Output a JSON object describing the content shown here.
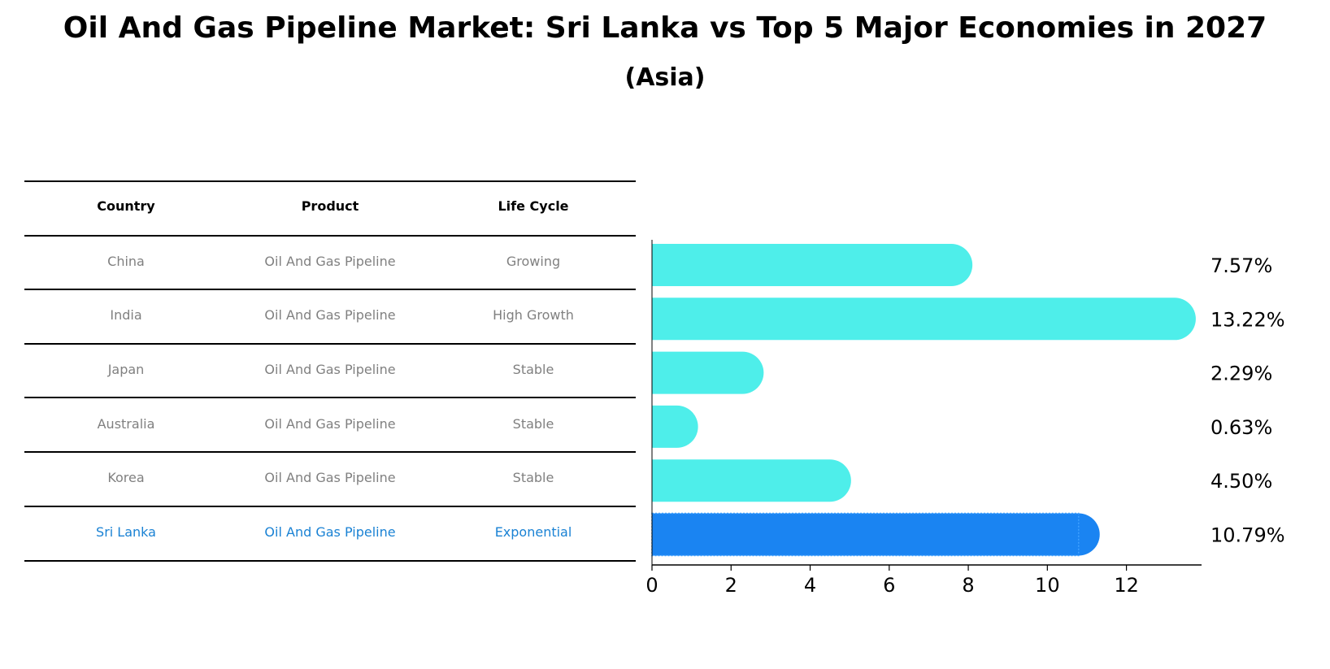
{
  "title": "Oil And Gas Pipeline Market: Sri Lanka vs Top 5 Major Economies in 2027",
  "subtitle": "(Asia)",
  "table": {
    "headers": [
      "Country",
      "Product",
      "Life Cycle"
    ],
    "rows": [
      {
        "country": "China",
        "product": "Oil And Gas Pipeline",
        "life_cycle": "Growing",
        "highlight": false
      },
      {
        "country": "India",
        "product": "Oil And Gas Pipeline",
        "life_cycle": "High Growth",
        "highlight": false
      },
      {
        "country": "Japan",
        "product": "Oil And Gas Pipeline",
        "life_cycle": "Stable",
        "highlight": false
      },
      {
        "country": "Australia",
        "product": "Oil And Gas Pipeline",
        "life_cycle": "Stable",
        "highlight": false
      },
      {
        "country": "Korea",
        "product": "Oil And Gas Pipeline",
        "life_cycle": "Stable",
        "highlight": false
      },
      {
        "country": "Sri Lanka",
        "product": "Oil And Gas Pipeline",
        "life_cycle": "Exponential",
        "highlight": true
      }
    ]
  },
  "chart_data": {
    "type": "bar",
    "orientation": "horizontal",
    "categories": [
      "China",
      "India",
      "Japan",
      "Australia",
      "Korea",
      "Sri Lanka"
    ],
    "values": [
      7.57,
      13.22,
      2.29,
      0.63,
      4.5,
      10.79
    ],
    "value_labels": [
      "7.57%",
      "13.22%",
      "2.29%",
      "0.63%",
      "4.50%",
      "10.79%"
    ],
    "xlim": [
      0,
      13.9
    ],
    "xticks": [
      0,
      2,
      4,
      6,
      8,
      10,
      12
    ],
    "xlabel": "",
    "ylabel": "",
    "grid": false,
    "colors": {
      "default": "#4eeeea",
      "highlight": "#1a84f2"
    },
    "highlight_category": "Sri Lanka"
  }
}
